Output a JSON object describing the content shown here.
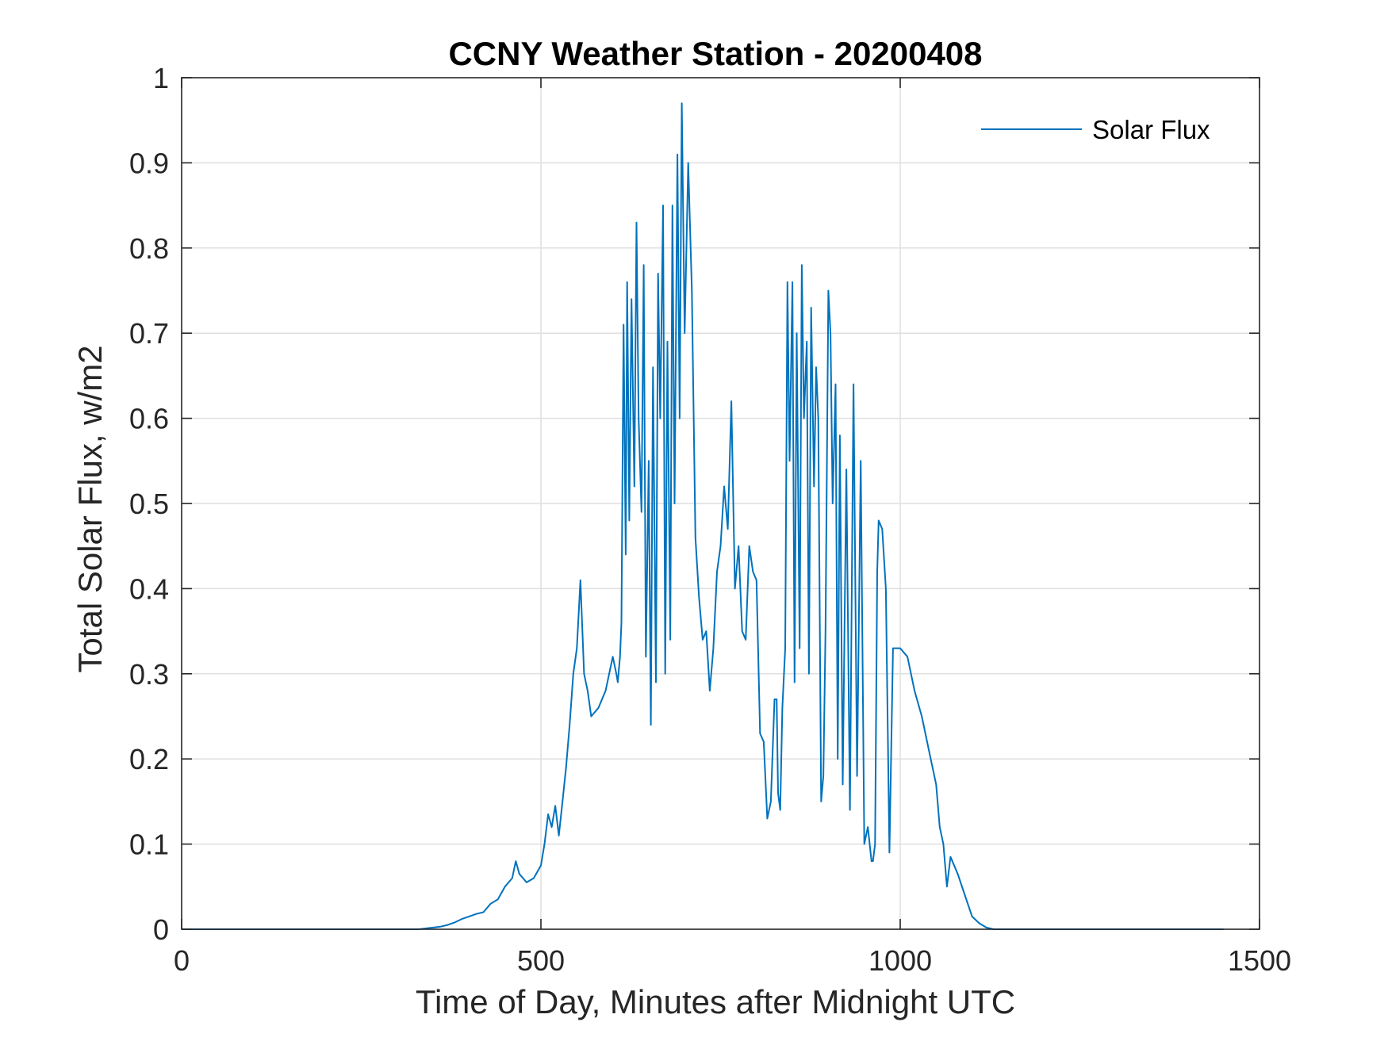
{
  "chart_data": {
    "type": "line",
    "title": "CCNY Weather Station - 20200408",
    "xlabel": "Time of Day, Minutes after Midnight UTC",
    "ylabel": "Total Solar Flux, w/m2",
    "xlim": [
      0,
      1500
    ],
    "ylim": [
      0,
      1
    ],
    "xticks": [
      0,
      500,
      1000,
      1500
    ],
    "yticks": [
      0,
      0.1,
      0.2,
      0.3,
      0.4,
      0.5,
      0.6,
      0.7,
      0.8,
      0.9,
      1
    ],
    "xtick_labels": [
      "0",
      "500",
      "1000",
      "1500"
    ],
    "ytick_labels": [
      "0",
      "0.1",
      "0.2",
      "0.3",
      "0.4",
      "0.5",
      "0.6",
      "0.7",
      "0.8",
      "0.9",
      "1"
    ],
    "grid": true,
    "legend_position": "top-right",
    "series_color": "#0072BD",
    "series": [
      {
        "name": "Solar Flux",
        "x": [
          0,
          100,
          200,
          300,
          330,
          350,
          360,
          370,
          380,
          390,
          400,
          410,
          420,
          430,
          440,
          450,
          455,
          460,
          465,
          470,
          480,
          490,
          500,
          505,
          510,
          515,
          520,
          525,
          530,
          535,
          540,
          545,
          550,
          555,
          560,
          565,
          570,
          580,
          590,
          600,
          605,
          607,
          610,
          612,
          615,
          618,
          620,
          623,
          626,
          630,
          633,
          636,
          640,
          643,
          646,
          650,
          653,
          656,
          660,
          663,
          666,
          670,
          673,
          676,
          680,
          683,
          686,
          690,
          693,
          696,
          700,
          705,
          710,
          715,
          720,
          725,
          730,
          735,
          740,
          745,
          750,
          755,
          760,
          765,
          770,
          775,
          780,
          785,
          790,
          795,
          800,
          805,
          810,
          815,
          820,
          825,
          828,
          830,
          833,
          836,
          840,
          843,
          846,
          850,
          853,
          856,
          860,
          863,
          866,
          870,
          873,
          876,
          880,
          883,
          886,
          890,
          893,
          896,
          900,
          903,
          906,
          910,
          913,
          916,
          920,
          925,
          930,
          935,
          940,
          945,
          950,
          955,
          960,
          962,
          965,
          968,
          970,
          975,
          980,
          985,
          990,
          1000,
          1010,
          1020,
          1030,
          1040,
          1050,
          1055,
          1060,
          1065,
          1070,
          1080,
          1090,
          1100,
          1110,
          1120,
          1130,
          1200,
          1300,
          1400,
          1450
        ],
        "values": [
          0,
          0,
          0,
          0,
          0,
          0.002,
          0.003,
          0.005,
          0.008,
          0.012,
          0.015,
          0.018,
          0.02,
          0.03,
          0.035,
          0.05,
          0.055,
          0.06,
          0.08,
          0.065,
          0.055,
          0.06,
          0.075,
          0.1,
          0.135,
          0.12,
          0.145,
          0.11,
          0.15,
          0.19,
          0.24,
          0.3,
          0.33,
          0.41,
          0.3,
          0.28,
          0.25,
          0.26,
          0.28,
          0.32,
          0.3,
          0.29,
          0.32,
          0.36,
          0.71,
          0.44,
          0.76,
          0.48,
          0.74,
          0.52,
          0.83,
          0.6,
          0.49,
          0.78,
          0.32,
          0.55,
          0.24,
          0.66,
          0.29,
          0.77,
          0.6,
          0.85,
          0.3,
          0.69,
          0.34,
          0.85,
          0.5,
          0.91,
          0.6,
          0.97,
          0.7,
          0.9,
          0.75,
          0.46,
          0.39,
          0.34,
          0.35,
          0.28,
          0.33,
          0.42,
          0.45,
          0.52,
          0.47,
          0.62,
          0.4,
          0.45,
          0.35,
          0.34,
          0.45,
          0.42,
          0.41,
          0.23,
          0.22,
          0.13,
          0.15,
          0.27,
          0.27,
          0.16,
          0.14,
          0.26,
          0.33,
          0.76,
          0.55,
          0.76,
          0.29,
          0.7,
          0.33,
          0.78,
          0.6,
          0.69,
          0.3,
          0.73,
          0.52,
          0.66,
          0.6,
          0.15,
          0.18,
          0.35,
          0.75,
          0.7,
          0.5,
          0.64,
          0.2,
          0.58,
          0.17,
          0.54,
          0.14,
          0.64,
          0.18,
          0.55,
          0.1,
          0.12,
          0.08,
          0.08,
          0.1,
          0.42,
          0.48,
          0.47,
          0.4,
          0.09,
          0.33,
          0.33,
          0.32,
          0.28,
          0.25,
          0.21,
          0.17,
          0.12,
          0.1,
          0.05,
          0.085,
          0.065,
          0.04,
          0.015,
          0.007,
          0.002,
          0,
          0,
          0,
          0,
          0
        ]
      }
    ]
  }
}
